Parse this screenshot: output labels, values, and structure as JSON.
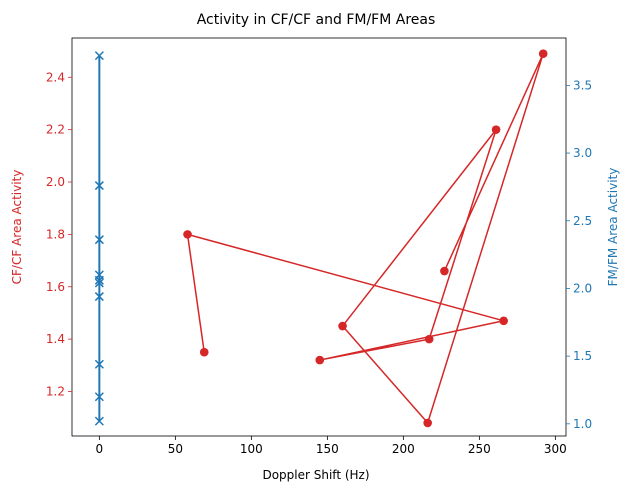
{
  "chart_data": {
    "type": "line",
    "title": "Activity in CF/CF and FM/FM Areas",
    "xlabel": "Doppler Shift (Hz)",
    "xlim": [
      -18,
      307
    ],
    "x_ticks": [
      0,
      50,
      100,
      150,
      200,
      250,
      300
    ],
    "ylabel_left": "CF/CF Area Activity",
    "ylim_left": [
      1.03,
      2.55
    ],
    "y_ticks_left": [
      1.2,
      1.4,
      1.6,
      1.8,
      2.0,
      2.2,
      2.4
    ],
    "ylabel_right": "FM/FM Area Activity",
    "ylim_right": [
      0.91,
      3.85
    ],
    "y_ticks_right": [
      1.0,
      1.5,
      2.0,
      2.5,
      3.0,
      3.5
    ],
    "colors": {
      "left": "#d62728",
      "right": "#1f77b4"
    },
    "grid": false,
    "series": [
      {
        "axis": "left",
        "marker": "circle",
        "points": [
          [
            69,
            1.35
          ],
          [
            58,
            1.8
          ],
          [
            266,
            1.47
          ],
          [
            145,
            1.32
          ],
          [
            217,
            1.4
          ],
          [
            261,
            2.2
          ],
          [
            160,
            1.45
          ],
          [
            216,
            1.08
          ],
          [
            292,
            2.49
          ],
          [
            227,
            1.66
          ]
        ]
      },
      {
        "axis": "right",
        "marker": "x",
        "points": [
          [
            0,
            3.72
          ],
          [
            0,
            2.76
          ],
          [
            0,
            2.36
          ],
          [
            0,
            2.1
          ],
          [
            0,
            2.06
          ],
          [
            0,
            2.04
          ],
          [
            0,
            1.94
          ],
          [
            0,
            1.44
          ],
          [
            0,
            1.2
          ],
          [
            0,
            1.02
          ]
        ]
      }
    ]
  }
}
